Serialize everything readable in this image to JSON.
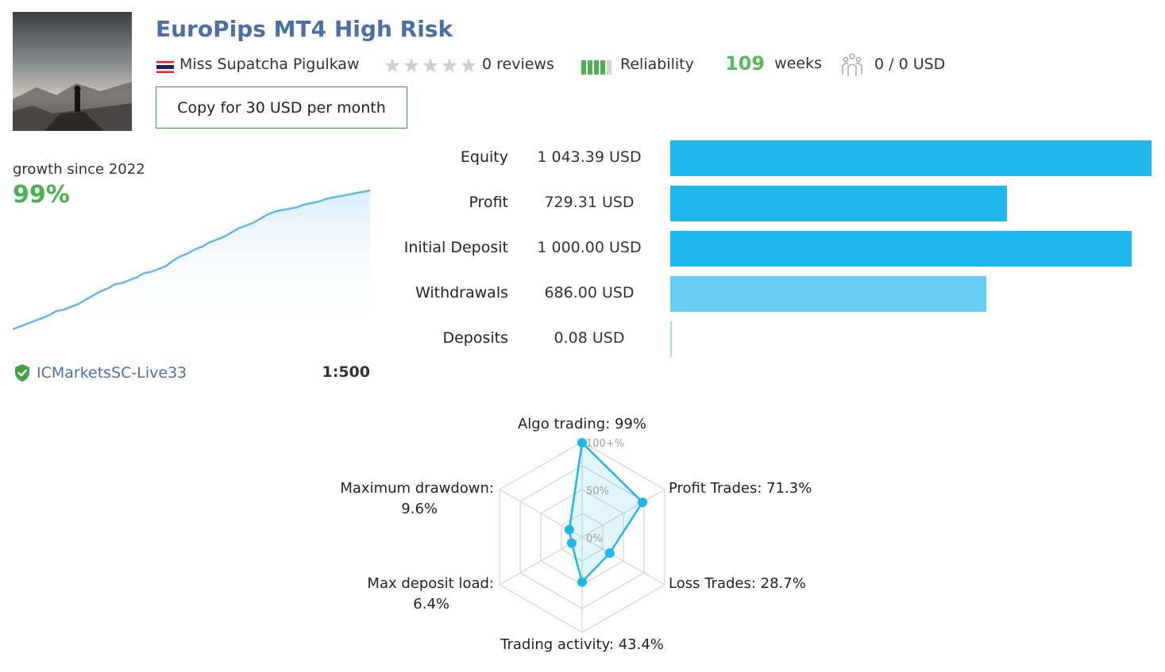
{
  "header": {
    "title": "EuroPips MT4 High Risk",
    "author": "Miss Supatcha Pigulkaw",
    "reviews": "0 reviews",
    "rating_stars": 0,
    "reliability_label": "Reliability",
    "reliability_level": 4,
    "weeks_number": "109",
    "weeks_label": "weeks",
    "subscribers": "0 / 0 USD",
    "copy_button": "Copy for 30 USD per month"
  },
  "growth": {
    "label": "growth since 2022",
    "value": "99%",
    "series": [
      0,
      2,
      4,
      6,
      8,
      10,
      13,
      14,
      16,
      18,
      21,
      24,
      27,
      29,
      32,
      33,
      35,
      37,
      40,
      41,
      43,
      45,
      49,
      52,
      54,
      57,
      59,
      62,
      64,
      66,
      69,
      72,
      74,
      76,
      79,
      82,
      84,
      85,
      86,
      87,
      89,
      90,
      91,
      93,
      94,
      95,
      96,
      97,
      98,
      99
    ]
  },
  "account": {
    "server": "ICMarketsSC-Live33",
    "leverage": "1:500"
  },
  "financials": [
    {
      "label": "Equity",
      "value": "1 043.39 USD",
      "amount": 1043.39,
      "color": "#1fb6ec"
    },
    {
      "label": "Profit",
      "value": "729.31 USD",
      "amount": 729.31,
      "color": "#1fb6ec"
    },
    {
      "label": "Initial Deposit",
      "value": "1 000.00 USD",
      "amount": 1000.0,
      "color": "#1fb6ec"
    },
    {
      "label": "Withdrawals",
      "value": "686.00 USD",
      "amount": 686.0,
      "color": "#63cdf3"
    },
    {
      "label": "Deposits",
      "value": "0.08 USD",
      "amount": 0.08,
      "color": "#9adcf4"
    }
  ],
  "radar": {
    "scale_labels": [
      "100+%",
      "50%",
      "0%"
    ],
    "axes": [
      {
        "label": "Algo trading: 99%",
        "value": 99
      },
      {
        "label": "Profit Trades: 71.3%",
        "value": 71.3
      },
      {
        "label": "Loss Trades: 28.7%",
        "value": 28.7
      },
      {
        "label": "Trading activity: 43.4%",
        "value": 43.4
      },
      {
        "label_line1": "Max deposit load:",
        "label_line2": "6.4%",
        "value": 6.4
      },
      {
        "label_line1": "Maximum drawdown:",
        "label_line2": "9.6%",
        "value": 9.6
      }
    ]
  }
}
